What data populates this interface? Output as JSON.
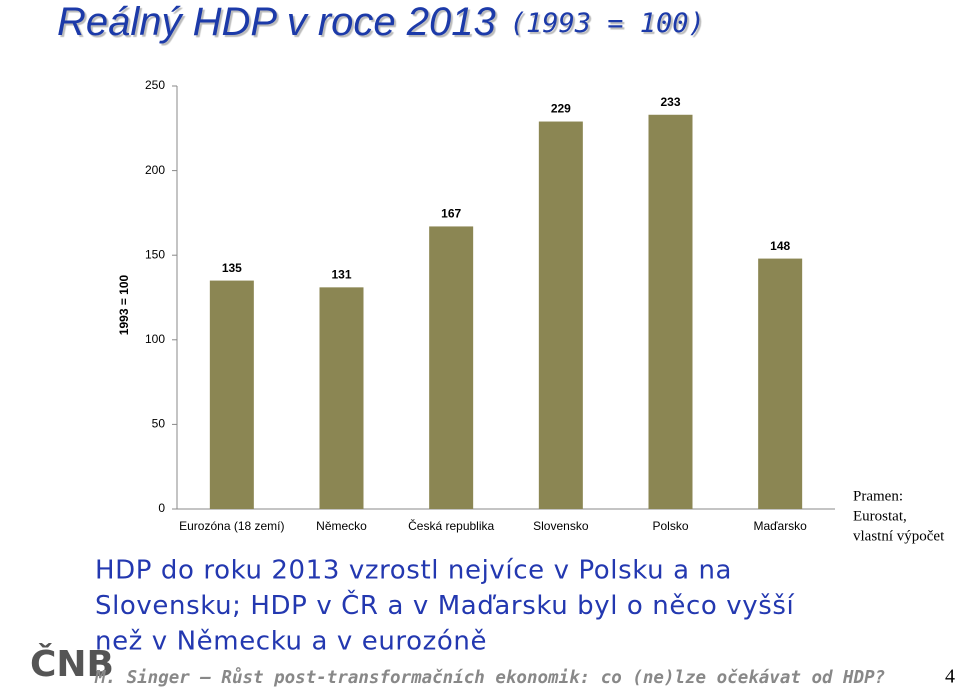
{
  "chart_data": {
    "type": "bar",
    "title": "Reálný HDP v roce 2013",
    "subtitle": "(1993 = 100)",
    "y_label": "1993 = 100",
    "categories": [
      "Eurozóna (18 zemí)",
      "Německo",
      "Česká republika",
      "Slovensko",
      "Polsko",
      "Maďarsko"
    ],
    "values": [
      135,
      131,
      167,
      229,
      233,
      148
    ],
    "color": "#8b8653",
    "ylim": [
      0,
      250
    ],
    "yticks": [
      0,
      50,
      100,
      150,
      200,
      250
    ],
    "grid": false
  },
  "source": [
    "Pramen:",
    "Eurostat,",
    "vlastní výpočet"
  ],
  "text": [
    "HDP do roku 2013 vzrostl nejvíce v Polsku a na",
    "Slovensku; HDP v ČR a v Maďarsku byl o něco vyšší",
    "než v Německu a v eurozóně"
  ],
  "logo": "ČNB",
  "footer": "M. Singer – Růst post-transformačních ekonomik: co (ne)lze očekávat od HDP?",
  "page_number": "4"
}
